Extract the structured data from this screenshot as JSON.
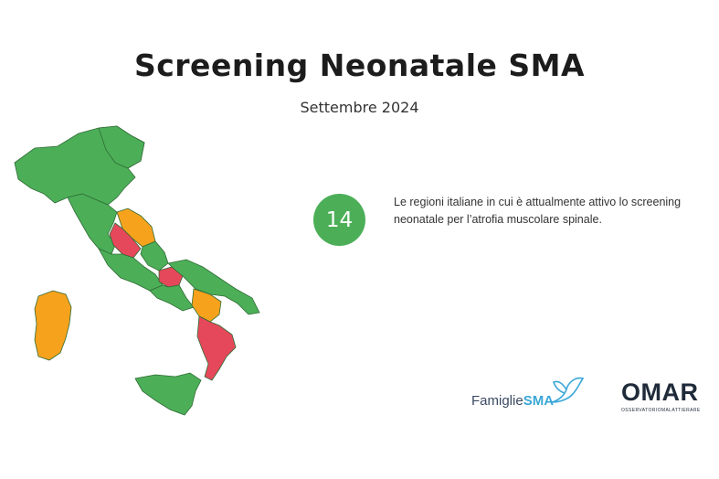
{
  "header": {
    "title": "Screening Neonatale SMA",
    "subtitle": "Settembre 2024"
  },
  "stat": {
    "value": "14",
    "description": "Le regioni italiane in cui è attualmente attivo lo screening neonatale per l’atrofia muscolare spinale."
  },
  "logos": {
    "famiglie_prefix": "Famiglie",
    "famiglie_suffix": "SMA",
    "omar": "OMAR",
    "omar_sub": "OSSERVATORIOMALATTIERARE"
  },
  "colors": {
    "active": "#4caf58",
    "partial": "#f6a21d",
    "inactive": "#e5485a"
  }
}
